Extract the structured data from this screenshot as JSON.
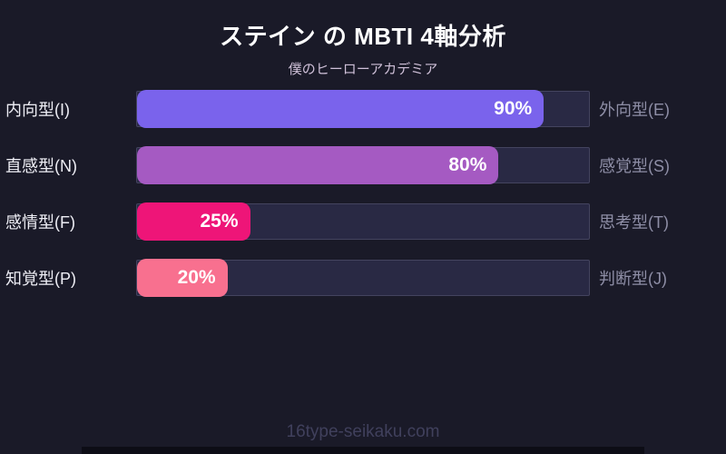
{
  "page": {
    "watermark": "16type-seikaku.com",
    "colors": {
      "background": "#1a1a28",
      "track": "#292944",
      "track_border": "#44445f",
      "title": "#ffffff",
      "subtitle": "#cfc0d8",
      "left_label": "#eeeef5",
      "right_label": "#8e8ea6",
      "watermark": "#40405c",
      "bottom_strip": "#0d0d16"
    }
  },
  "chart_data": {
    "type": "bar",
    "orientation": "horizontal",
    "title": "ステイン の MBTI 4軸分析",
    "subtitle": "僕のヒーローアカデミア",
    "xlim": [
      0,
      100
    ],
    "grid": false,
    "legend": false,
    "rows": [
      {
        "left_label": "内向型(I)",
        "right_label": "外向型(E)",
        "value": 90,
        "value_label": "90%",
        "color": "#7a63ec"
      },
      {
        "left_label": "直感型(N)",
        "right_label": "感覚型(S)",
        "value": 80,
        "value_label": "80%",
        "color": "#a55ac2"
      },
      {
        "left_label": "感情型(F)",
        "right_label": "思考型(T)",
        "value": 25,
        "value_label": "25%",
        "color": "#ee1578"
      },
      {
        "left_label": "知覚型(P)",
        "right_label": "判断型(J)",
        "value": 20,
        "value_label": "20%",
        "color": "#f8708f"
      }
    ]
  }
}
